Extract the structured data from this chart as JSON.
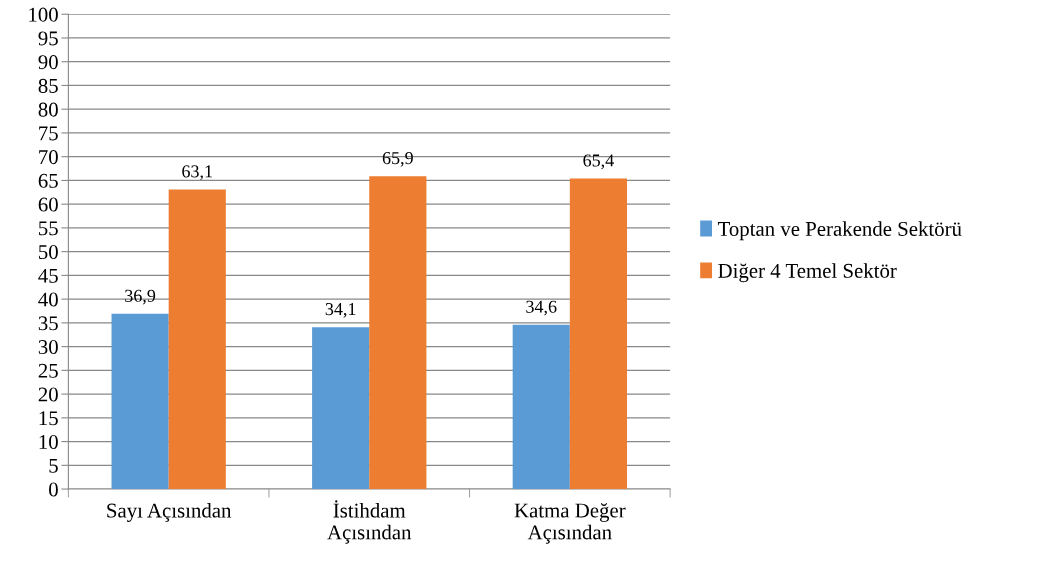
{
  "chart_data": {
    "type": "bar",
    "categories": [
      "Sayı Açısından",
      "İstihdam\nAçısından",
      "Katma Değer\nAçısından"
    ],
    "series": [
      {
        "name": "Toptan ve Perakende Sektörü",
        "color": "#5b9bd5",
        "values": [
          36.9,
          34.1,
          34.6
        ],
        "value_labels": [
          "36,9",
          "34,1",
          "34,6"
        ]
      },
      {
        "name": "Diğer 4 Temel Sektör",
        "color": "#ed7d31",
        "values": [
          63.1,
          65.9,
          65.4
        ],
        "value_labels": [
          "63,1",
          "65,9",
          "65,4"
        ]
      }
    ],
    "ylim": [
      0,
      100
    ],
    "yticks": [
      0,
      5,
      10,
      15,
      20,
      25,
      30,
      35,
      40,
      45,
      50,
      55,
      60,
      65,
      70,
      75,
      80,
      85,
      90,
      95,
      100
    ],
    "grid": "y",
    "legend": "right"
  }
}
